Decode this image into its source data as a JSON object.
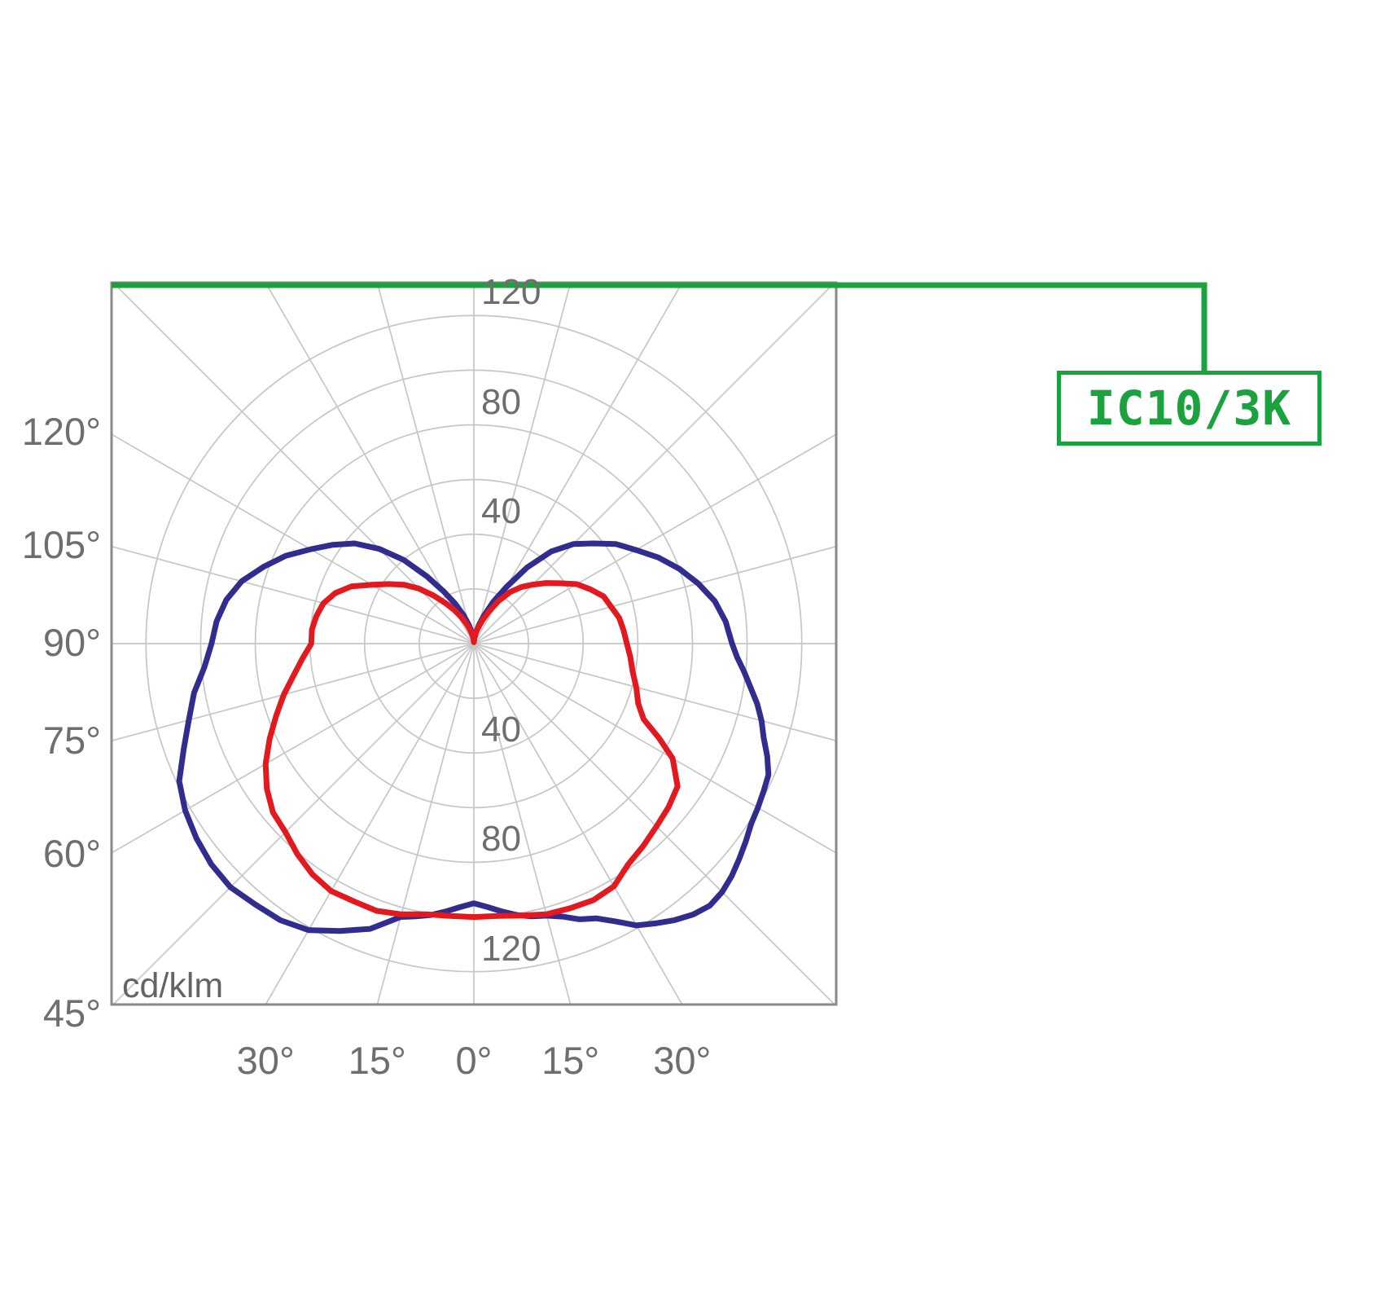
{
  "figure": {
    "background": "#ffffff"
  },
  "callout": {
    "label": "IC10/3K",
    "color": "#1ba13e"
  },
  "chart_data": {
    "type": "polar_intensity_distribution",
    "units_label": "cd/klm",
    "grid_on": true,
    "grid_color": "#c6c6c6",
    "border_color": "#8a8a8a",
    "radial_gridlines": [
      20,
      40,
      60,
      80,
      100,
      120
    ],
    "radial_axis_max": 132,
    "angle_gridline_step_deg": 15,
    "radial_tick_labels": [
      {
        "label": "120",
        "value": 120,
        "side": "up"
      },
      {
        "label": "80",
        "value": 80,
        "side": "up"
      },
      {
        "label": "40",
        "value": 40,
        "side": "up"
      },
      {
        "label": "40",
        "value": 40,
        "side": "down"
      },
      {
        "label": "80",
        "value": 80,
        "side": "down"
      },
      {
        "label": "120",
        "value": 120,
        "side": "down"
      }
    ],
    "left_axis_labels": [
      {
        "label": "120°",
        "gamma": 120
      },
      {
        "label": "105°",
        "gamma": 105
      },
      {
        "label": "90°",
        "gamma": 90
      },
      {
        "label": "75°",
        "gamma": 75
      },
      {
        "label": "60°",
        "gamma": 60
      },
      {
        "label": "45°",
        "gamma": 45
      }
    ],
    "bottom_axis_labels": [
      {
        "label": "30°",
        "gamma": -30
      },
      {
        "label": "15°",
        "gamma": -15
      },
      {
        "label": "0°",
        "gamma": 0
      },
      {
        "label": "15°",
        "gamma": 15
      },
      {
        "label": "30°",
        "gamma": 30
      }
    ],
    "series": [
      {
        "name": "blue",
        "color": "#312c8e",
        "points": [
          [
            -180,
            1
          ],
          [
            -175,
            2
          ],
          [
            -170,
            4
          ],
          [
            -165,
            7
          ],
          [
            -160,
            11
          ],
          [
            -155,
            16
          ],
          [
            -150,
            22
          ],
          [
            -145,
            30
          ],
          [
            -140,
            40
          ],
          [
            -135,
            49
          ],
          [
            -130,
            57
          ],
          [
            -125,
            63
          ],
          [
            -120,
            69
          ],
          [
            -115,
            76
          ],
          [
            -110,
            82
          ],
          [
            -105,
            88
          ],
          [
            -100,
            92
          ],
          [
            -95,
            94.5
          ],
          [
            -90,
            96
          ],
          [
            -85,
            99
          ],
          [
            -80,
            104
          ],
          [
            -75,
            108
          ],
          [
            -70,
            113
          ],
          [
            -65,
            119
          ],
          [
            -60,
            122
          ],
          [
            -55,
            124
          ],
          [
            -50,
            125.5
          ],
          [
            -45,
            126
          ],
          [
            -40,
            124.5
          ],
          [
            -35,
            123.5
          ],
          [
            -30,
            121
          ],
          [
            -25,
            116
          ],
          [
            -20,
            111
          ],
          [
            -15,
            103.5
          ],
          [
            -12,
            102
          ],
          [
            -9,
            100.5
          ],
          [
            -6,
            98.5
          ],
          [
            -3,
            96.5
          ],
          [
            0,
            95
          ],
          [
            3,
            96.5
          ],
          [
            6,
            98.5
          ],
          [
            9,
            100.5
          ],
          [
            12,
            102
          ],
          [
            15,
            103
          ],
          [
            18,
            105
          ],
          [
            21,
            108
          ],
          [
            24,
            110
          ],
          [
            27,
            114
          ],
          [
            30,
            119
          ],
          [
            33,
            122
          ],
          [
            36,
            125
          ],
          [
            39,
            127.5
          ],
          [
            42,
            129
          ],
          [
            45,
            128.5
          ],
          [
            48,
            127
          ],
          [
            51,
            125
          ],
          [
            54,
            123
          ],
          [
            57,
            121
          ],
          [
            60,
            120
          ],
          [
            63,
            119
          ],
          [
            66,
            118
          ],
          [
            69,
            115
          ],
          [
            72,
            111.5
          ],
          [
            75,
            109
          ],
          [
            78,
            106
          ],
          [
            81,
            102.5
          ],
          [
            84,
            99.5
          ],
          [
            87,
            96.5
          ],
          [
            90,
            94.5
          ],
          [
            95,
            92.5
          ],
          [
            100,
            89.5
          ],
          [
            105,
            85
          ],
          [
            110,
            80
          ],
          [
            115,
            74.5
          ],
          [
            120,
            68.5
          ],
          [
            125,
            63.5
          ],
          [
            130,
            57
          ],
          [
            135,
            51.5
          ],
          [
            140,
            44
          ],
          [
            145,
            34
          ],
          [
            150,
            24
          ],
          [
            155,
            17
          ],
          [
            160,
            11
          ],
          [
            165,
            7
          ],
          [
            170,
            4
          ],
          [
            175,
            2
          ],
          [
            180,
            1
          ]
        ]
      },
      {
        "name": "red",
        "color": "#e2191f",
        "points": [
          [
            -180,
            0.5
          ],
          [
            -175,
            1.5
          ],
          [
            -170,
            3
          ],
          [
            -165,
            5
          ],
          [
            -160,
            7.5
          ],
          [
            -155,
            10.5
          ],
          [
            -150,
            14
          ],
          [
            -145,
            18
          ],
          [
            -140,
            23
          ],
          [
            -135,
            28.5
          ],
          [
            -130,
            33.5
          ],
          [
            -125,
            38
          ],
          [
            -120,
            43
          ],
          [
            -115,
            49.5
          ],
          [
            -110,
            54
          ],
          [
            -105,
            57
          ],
          [
            -100,
            58.5
          ],
          [
            -95,
            59.5
          ],
          [
            -90,
            59.5
          ],
          [
            -85,
            63
          ],
          [
            -80,
            67
          ],
          [
            -75,
            72
          ],
          [
            -70,
            77
          ],
          [
            -65,
            82.5
          ],
          [
            -60,
            88
          ],
          [
            -55,
            92.5
          ],
          [
            -50,
            96
          ],
          [
            -45,
            97.5
          ],
          [
            -40,
            100.5
          ],
          [
            -35,
            103
          ],
          [
            -30,
            104.5
          ],
          [
            -25,
            104
          ],
          [
            -20,
            104
          ],
          [
            -15,
            102.5
          ],
          [
            -10,
            100.5
          ],
          [
            -5,
            100
          ],
          [
            0,
            100
          ],
          [
            5,
            100
          ],
          [
            10,
            101
          ],
          [
            15,
            102.5
          ],
          [
            20,
            103
          ],
          [
            25,
            103.5
          ],
          [
            30,
            102.5
          ],
          [
            35,
            98.5
          ],
          [
            40,
            96.5
          ],
          [
            45,
            94.5
          ],
          [
            50,
            93
          ],
          [
            55,
            91
          ],
          [
            60,
            84
          ],
          [
            63,
            76
          ],
          [
            66,
            68
          ],
          [
            70,
            64
          ],
          [
            75,
            61.5
          ],
          [
            80,
            59
          ],
          [
            85,
            57.5
          ],
          [
            90,
            56
          ],
          [
            95,
            55
          ],
          [
            100,
            54
          ],
          [
            105,
            52
          ],
          [
            110,
            50.5
          ],
          [
            115,
            47
          ],
          [
            120,
            43.5
          ],
          [
            125,
            38.5
          ],
          [
            130,
            34.5
          ],
          [
            135,
            30.5
          ],
          [
            140,
            27
          ],
          [
            145,
            23
          ],
          [
            150,
            18
          ],
          [
            155,
            13
          ],
          [
            160,
            9
          ],
          [
            165,
            6
          ],
          [
            170,
            4
          ],
          [
            175,
            2
          ],
          [
            180,
            0.5
          ]
        ]
      }
    ],
    "connector_color": "#1ba13e"
  }
}
